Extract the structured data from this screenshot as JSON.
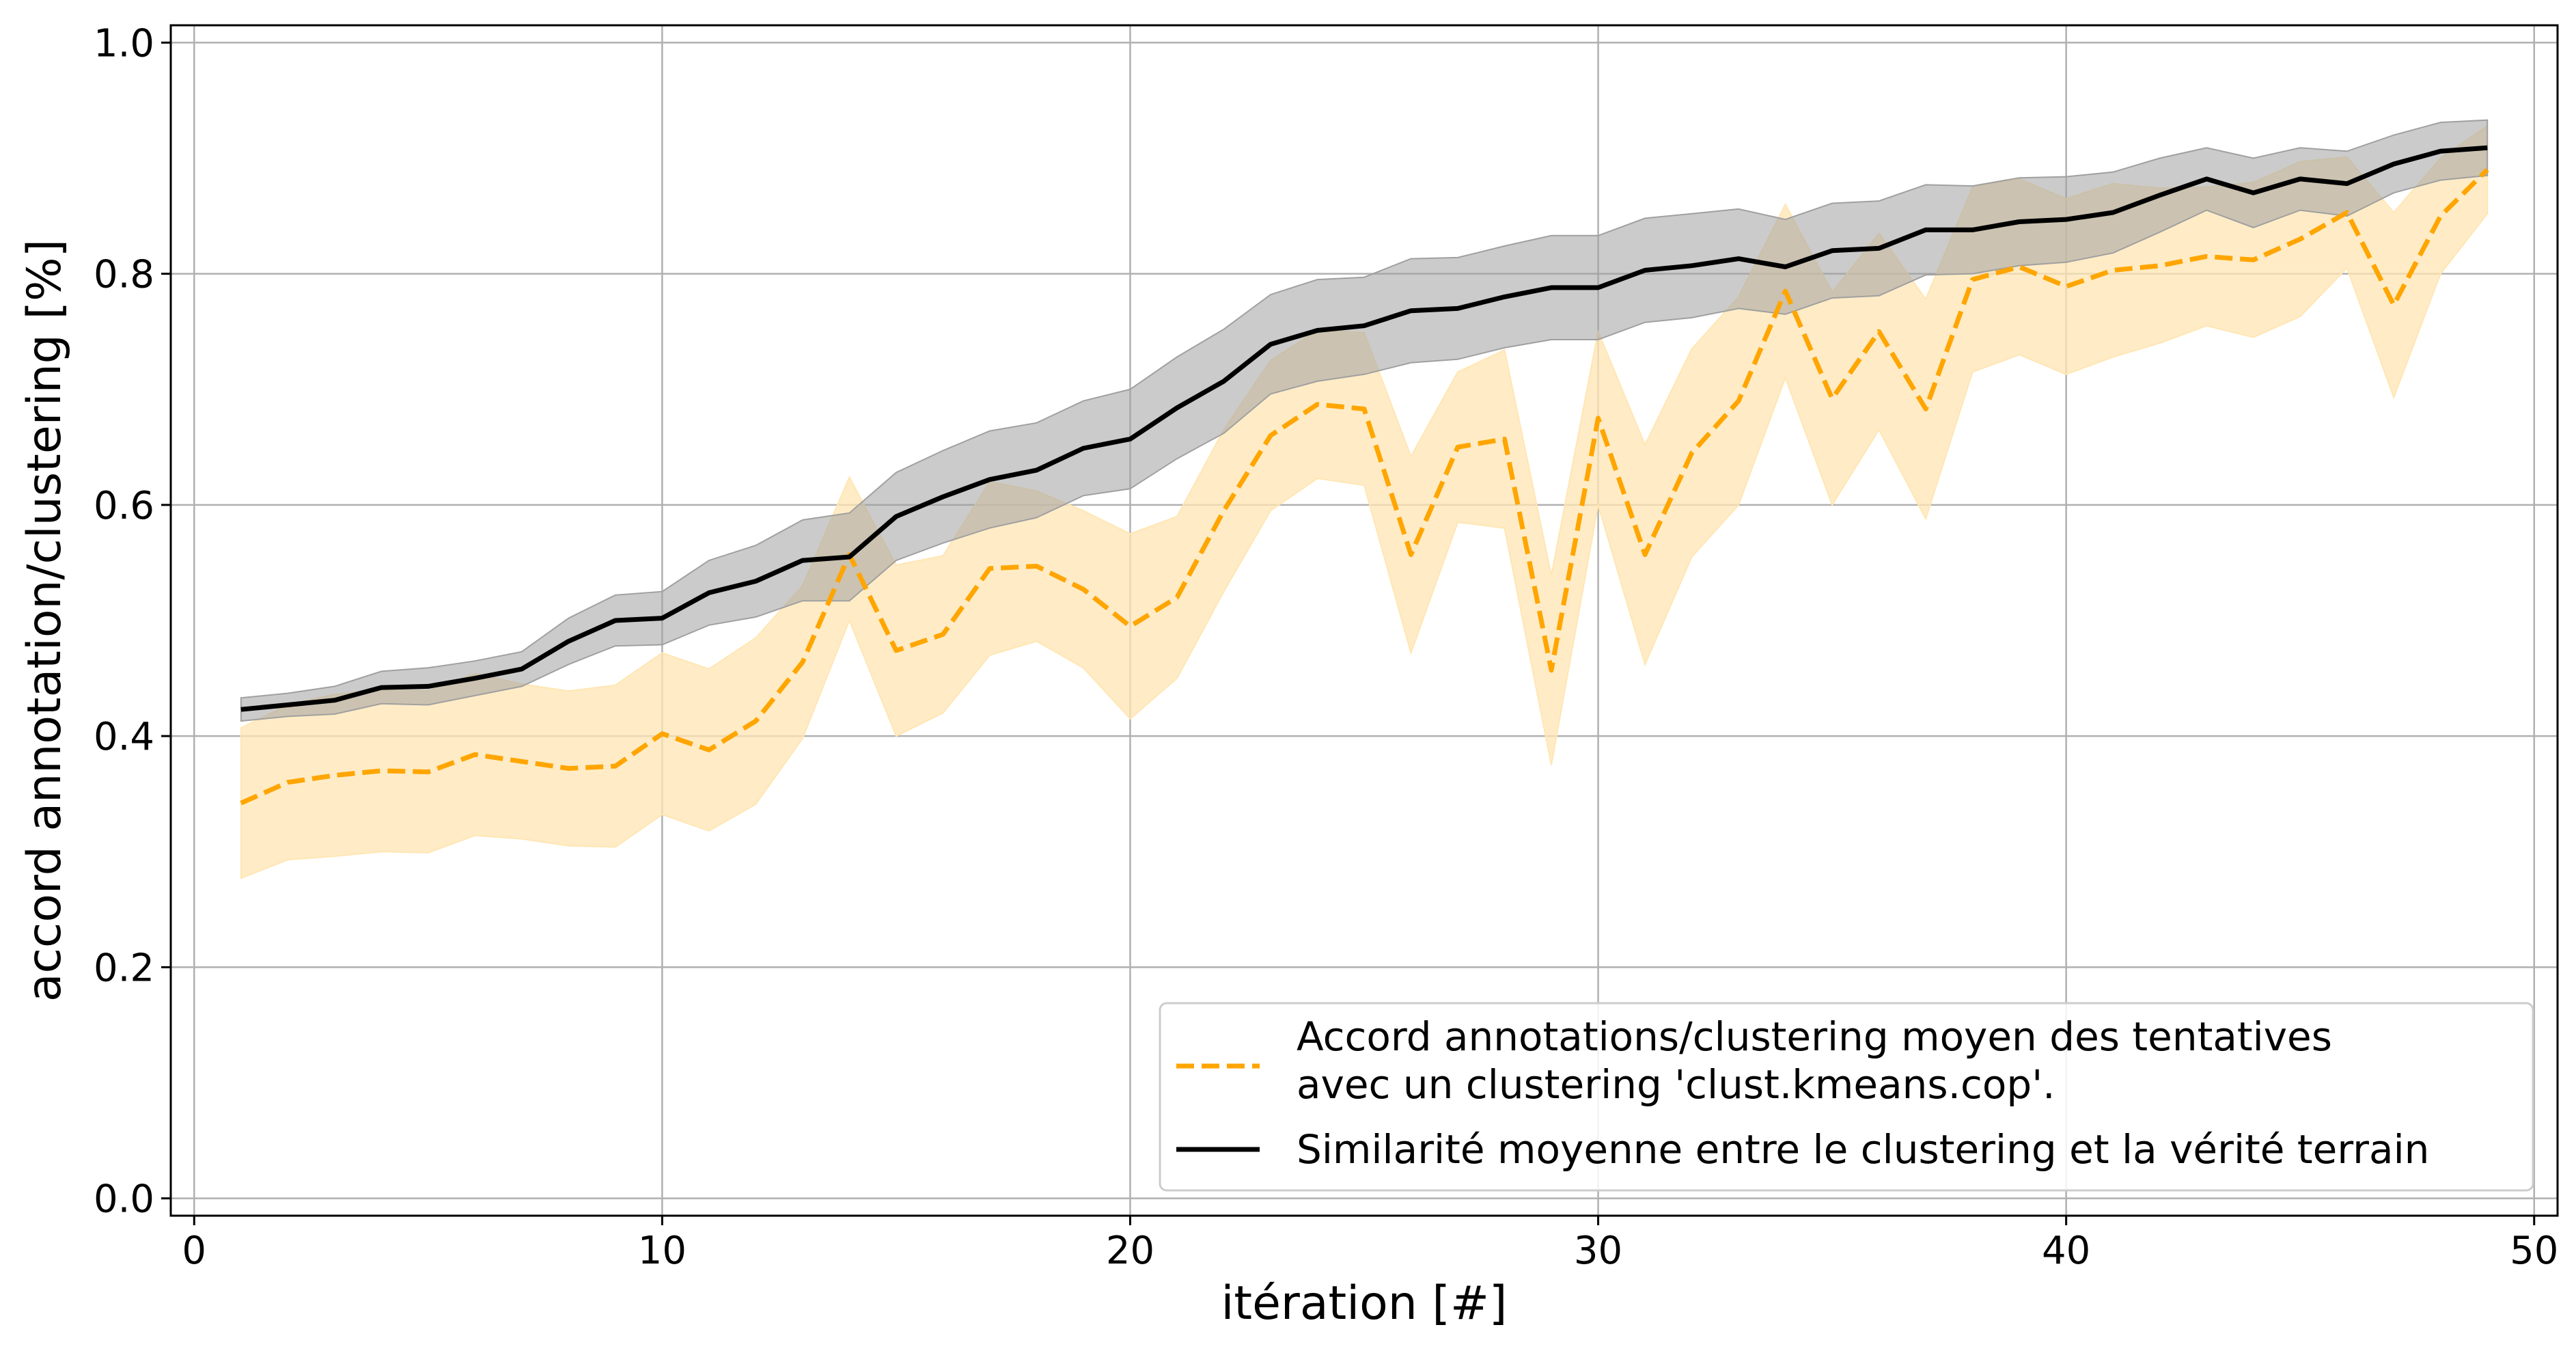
{
  "chart_data": {
    "type": "line",
    "title": "",
    "xlabel": "itération [#]",
    "ylabel": "accord annotation/clustering [%]",
    "xlim": [
      -0.5,
      50.5
    ],
    "ylim": [
      -0.015,
      1.015
    ],
    "xticks": [
      0,
      10,
      20,
      30,
      40,
      50
    ],
    "yticks": [
      0.0,
      0.2,
      0.4,
      0.6,
      0.8,
      1.0
    ],
    "xtick_labels": [
      "0",
      "10",
      "20",
      "30",
      "40",
      "50"
    ],
    "ytick_labels": [
      "0.0",
      "0.2",
      "0.4",
      "0.6",
      "0.8",
      "1.0"
    ],
    "grid": true,
    "legend_position": "bottom-right",
    "x": [
      1,
      2,
      3,
      4,
      5,
      6,
      7,
      8,
      9,
      10,
      11,
      12,
      13,
      14,
      15,
      16,
      17,
      18,
      19,
      20,
      21,
      22,
      23,
      24,
      25,
      26,
      27,
      28,
      29,
      30,
      31,
      32,
      33,
      34,
      35,
      36,
      37,
      38,
      39,
      40,
      41,
      42,
      43,
      44,
      45,
      46,
      47,
      48,
      49
    ],
    "series": [
      {
        "name": "Accord annotations/clustering moyen des tentatives\navec un clustering 'clust.kmeans.cop'.",
        "legend_lines": [
          "Accord annotations/clustering moyen des tentatives",
          "avec un clustering 'clust.kmeans.cop'."
        ],
        "color": "#FFA500",
        "band_color": "#FFE6B3",
        "style": "dashed",
        "values": [
          0.342,
          0.36,
          0.366,
          0.37,
          0.369,
          0.384,
          0.378,
          0.372,
          0.374,
          0.402,
          0.388,
          0.413,
          0.464,
          0.557,
          0.474,
          0.488,
          0.545,
          0.547,
          0.527,
          0.495,
          0.52,
          0.595,
          0.66,
          0.687,
          0.683,
          0.557,
          0.65,
          0.657,
          0.457,
          0.675,
          0.557,
          0.645,
          0.69,
          0.785,
          0.692,
          0.75,
          0.683,
          0.795,
          0.806,
          0.789,
          0.803,
          0.807,
          0.815,
          0.812,
          0.83,
          0.853,
          0.773,
          0.85,
          0.89
        ],
        "lower": [
          0.277,
          0.293,
          0.296,
          0.3,
          0.299,
          0.314,
          0.311,
          0.305,
          0.304,
          0.332,
          0.318,
          0.341,
          0.398,
          0.5,
          0.4,
          0.42,
          0.47,
          0.482,
          0.459,
          0.415,
          0.45,
          0.525,
          0.595,
          0.623,
          0.617,
          0.472,
          0.585,
          0.58,
          0.375,
          0.6,
          0.462,
          0.555,
          0.6,
          0.71,
          0.6,
          0.665,
          0.588,
          0.715,
          0.73,
          0.713,
          0.728,
          0.74,
          0.755,
          0.745,
          0.763,
          0.805,
          0.693,
          0.8,
          0.852
        ],
        "upper": [
          0.407,
          0.427,
          0.436,
          0.44,
          0.439,
          0.454,
          0.445,
          0.439,
          0.444,
          0.472,
          0.458,
          0.485,
          0.53,
          0.624,
          0.548,
          0.556,
          0.62,
          0.612,
          0.595,
          0.575,
          0.59,
          0.665,
          0.725,
          0.751,
          0.749,
          0.642,
          0.715,
          0.734,
          0.539,
          0.75,
          0.652,
          0.735,
          0.78,
          0.86,
          0.784,
          0.835,
          0.778,
          0.875,
          0.882,
          0.865,
          0.878,
          0.874,
          0.875,
          0.879,
          0.897,
          0.901,
          0.853,
          0.9,
          0.928
        ]
      },
      {
        "name": "Similarité moyenne entre le clustering et la vérité terrain",
        "legend_lines": [
          "Similarité moyenne entre le clustering et la vérité terrain"
        ],
        "color": "#000000",
        "band_color": "#A0A0A0",
        "style": "solid",
        "values": [
          0.423,
          0.427,
          0.431,
          0.442,
          0.443,
          0.45,
          0.458,
          0.482,
          0.5,
          0.502,
          0.524,
          0.534,
          0.552,
          0.555,
          0.59,
          0.607,
          0.622,
          0.63,
          0.649,
          0.657,
          0.684,
          0.707,
          0.739,
          0.751,
          0.755,
          0.768,
          0.77,
          0.78,
          0.788,
          0.788,
          0.803,
          0.807,
          0.813,
          0.806,
          0.82,
          0.822,
          0.838,
          0.838,
          0.845,
          0.847,
          0.853,
          0.868,
          0.882,
          0.87,
          0.882,
          0.878,
          0.895,
          0.906,
          0.909
        ],
        "lower": [
          0.413,
          0.417,
          0.419,
          0.428,
          0.427,
          0.435,
          0.443,
          0.462,
          0.478,
          0.479,
          0.496,
          0.503,
          0.517,
          0.517,
          0.552,
          0.567,
          0.58,
          0.589,
          0.608,
          0.614,
          0.64,
          0.662,
          0.696,
          0.707,
          0.713,
          0.723,
          0.726,
          0.736,
          0.743,
          0.743,
          0.758,
          0.762,
          0.77,
          0.765,
          0.779,
          0.781,
          0.799,
          0.8,
          0.807,
          0.81,
          0.818,
          0.836,
          0.855,
          0.84,
          0.855,
          0.85,
          0.87,
          0.881,
          0.885
        ],
        "upper": [
          0.433,
          0.437,
          0.443,
          0.456,
          0.459,
          0.465,
          0.473,
          0.502,
          0.522,
          0.525,
          0.552,
          0.565,
          0.587,
          0.593,
          0.628,
          0.647,
          0.664,
          0.671,
          0.69,
          0.7,
          0.728,
          0.752,
          0.782,
          0.795,
          0.797,
          0.813,
          0.814,
          0.824,
          0.833,
          0.833,
          0.848,
          0.852,
          0.856,
          0.847,
          0.861,
          0.863,
          0.877,
          0.876,
          0.883,
          0.884,
          0.888,
          0.9,
          0.909,
          0.9,
          0.909,
          0.906,
          0.92,
          0.931,
          0.933
        ]
      }
    ]
  }
}
